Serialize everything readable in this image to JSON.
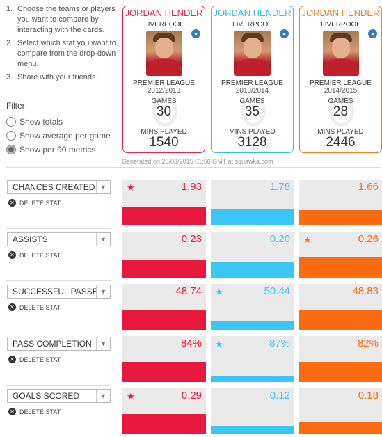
{
  "instructions": [
    {
      "num": "1.",
      "text": "Choose the teams or players you want to compare by interacting with the cards."
    },
    {
      "num": "2.",
      "text": "Select which stat you want to compare from the drop-down menu."
    },
    {
      "num": "3.",
      "text": "Share with your friends."
    }
  ],
  "filter": {
    "title": "Filter",
    "options": [
      {
        "label": "Show totals",
        "checked": false
      },
      {
        "label": "Show average per game",
        "checked": false
      },
      {
        "label": "Show per 90 metrics",
        "checked": true
      }
    ]
  },
  "cards": [
    {
      "name": "JORDAN HENDER",
      "club": "LIVERPOOL",
      "league": "PREMIER LEAGUE",
      "season": "2012/2013",
      "games_label": "GAMES",
      "games": "30",
      "mins_label": "MINS PLAYED",
      "mins": "1540",
      "color": "#e0284a"
    },
    {
      "name": "JORDAN HENDER",
      "club": "LIVERPOOL",
      "league": "PREMIER LEAGUE",
      "season": "2013/2014",
      "games_label": "GAMES",
      "games": "35",
      "mins_label": "MINS PLAYED",
      "mins": "3128",
      "color": "#3bbde8"
    },
    {
      "name": "JORDAN HENDER",
      "club": "LIVERPOOL",
      "league": "PREMIER LEAGUE",
      "season": "2014/2015",
      "games_label": "GAMES",
      "games": "28",
      "mins_label": "MINS PLAYED",
      "mins": "2446",
      "color": "#f47b20"
    }
  ],
  "generated": "Generated on 20/03/2015 01:56 GMT at squawka.com",
  "delete_label": "DELETE STAT",
  "colors": {
    "p1": "#e8193c",
    "p2": "#3cc6f5",
    "p3": "#fa6b12",
    "cell_bg": "#eaeaea"
  },
  "stats": [
    {
      "name": "CHANCES CREATED",
      "values": [
        "1.93",
        "1.78",
        "1.66"
      ],
      "fractions": [
        0.58,
        0.53,
        0.5
      ],
      "star": 0
    },
    {
      "name": "ASSISTS",
      "values": [
        "0.23",
        "0.20",
        "0.26"
      ],
      "fractions": [
        0.6,
        0.5,
        0.66
      ],
      "star": 2
    },
    {
      "name": "SUCCESSFUL PASSES",
      "values": [
        "48.74",
        "50.44",
        "48.83"
      ],
      "fractions": [
        0.66,
        0.28,
        0.66
      ],
      "star": 1
    },
    {
      "name": "PASS COMPLETION",
      "values": [
        "84%",
        "87%",
        "82%"
      ],
      "fractions": [
        0.66,
        0.18,
        0.66
      ],
      "star": 1
    },
    {
      "name": "GOALS SCORED",
      "values": [
        "0.29",
        "0.12",
        "0.18"
      ],
      "fractions": [
        0.66,
        0.27,
        0.42
      ],
      "star": 0
    }
  ]
}
